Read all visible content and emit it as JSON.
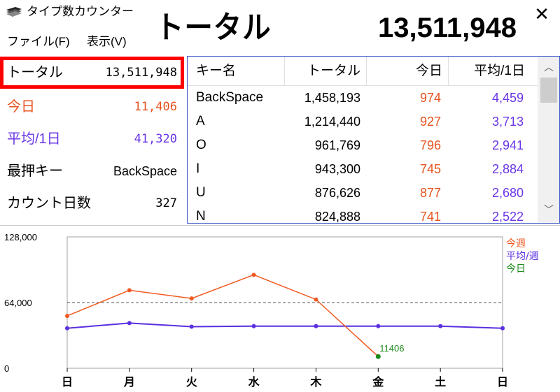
{
  "window": {
    "title": "タイプ数カウンター",
    "close_glyph": "✕"
  },
  "menu": {
    "file": "ファイル(F)",
    "view": "表示(V)"
  },
  "header": {
    "label": "トータル",
    "value": "13,511,948"
  },
  "stats": {
    "total": {
      "label": "トータル",
      "value": "13,511,948"
    },
    "today": {
      "label": "今日",
      "value": "11,406",
      "color": "#e5531f"
    },
    "average": {
      "label": "平均/1日",
      "value": "41,320",
      "color": "#6a36e6"
    },
    "top_key": {
      "label": "最押キー",
      "value": "BackSpace"
    },
    "days": {
      "label": "カウント日数",
      "value": "327"
    }
  },
  "table": {
    "columns": {
      "key": "キー名",
      "total": "トータル",
      "today": "今日",
      "average": "平均/1日"
    },
    "rows": [
      {
        "key": "BackSpace",
        "total": "1,458,193",
        "today": "974",
        "average": "4,459"
      },
      {
        "key": "A",
        "total": "1,214,440",
        "today": "927",
        "average": "3,713"
      },
      {
        "key": "O",
        "total": "961,769",
        "today": "796",
        "average": "2,941"
      },
      {
        "key": "I",
        "total": "943,300",
        "today": "745",
        "average": "2,884"
      },
      {
        "key": "U",
        "total": "876,626",
        "today": "877",
        "average": "2,680"
      },
      {
        "key": "N",
        "total": "824,888",
        "today": "741",
        "average": "2,522"
      }
    ]
  },
  "chart_data": {
    "type": "line",
    "categories": [
      "日",
      "月",
      "火",
      "水",
      "木",
      "金",
      "土",
      "日"
    ],
    "y_tick_labels": [
      "128,000",
      "64,000",
      "0"
    ],
    "ylim": [
      0,
      128000
    ],
    "reference_line": 64000,
    "series": [
      {
        "name": "今週",
        "color": "#f05a22",
        "values": [
          51000,
          76000,
          68000,
          91000,
          67000,
          11406,
          null,
          null
        ]
      },
      {
        "name": "平均/週",
        "color": "#5a2fe0",
        "values": [
          39000,
          44000,
          40500,
          41000,
          41000,
          41000,
          41000,
          39000
        ]
      }
    ],
    "legend": [
      {
        "name": "今週",
        "color": "#f05a22"
      },
      {
        "name": "平均/週",
        "color": "#5a2fe0"
      },
      {
        "name": "今日",
        "color": "#1a8a1a"
      }
    ],
    "today_marker": {
      "category_index": 5,
      "value": 11406,
      "label": "11406",
      "color": "#1a8a1a"
    },
    "legend_position": "right"
  }
}
